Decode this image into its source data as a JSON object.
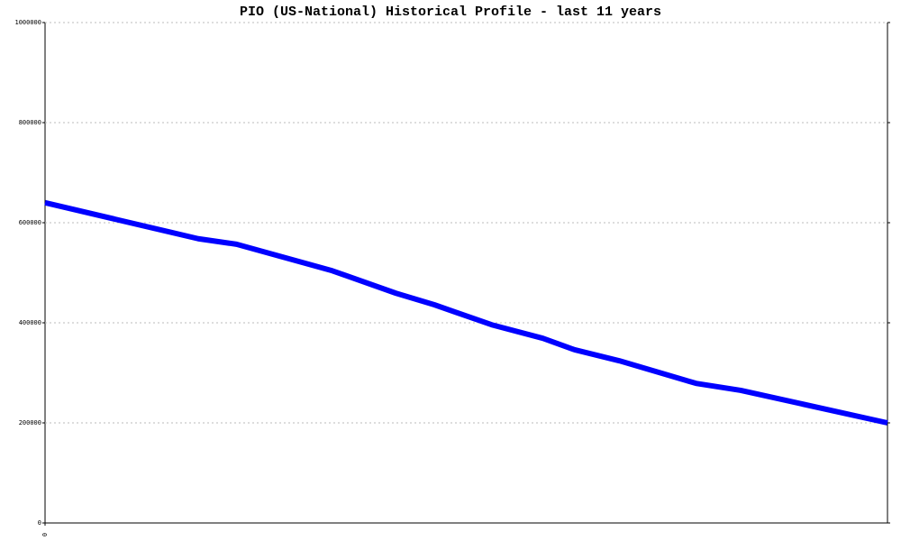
{
  "chart_data": {
    "type": "line",
    "title": "PIO (US-National) Historical Profile - last 11 years",
    "x": [
      0,
      24,
      30,
      45,
      55,
      61,
      70,
      78,
      83,
      90,
      102,
      109,
      132
    ],
    "series": [
      {
        "color": "#0000ff",
        "values": [
          640000,
          568000,
          557000,
          504000,
          459000,
          436000,
          396000,
          369000,
          346000,
          324000,
          279000,
          265000,
          200000
        ]
      }
    ],
    "xlim": [
      0,
      132
    ],
    "xticks": [
      0
    ],
    "ylim": [
      0,
      1000000
    ],
    "yticks": [
      0,
      200000,
      400000,
      600000,
      800000,
      1000000
    ],
    "grid": true
  }
}
